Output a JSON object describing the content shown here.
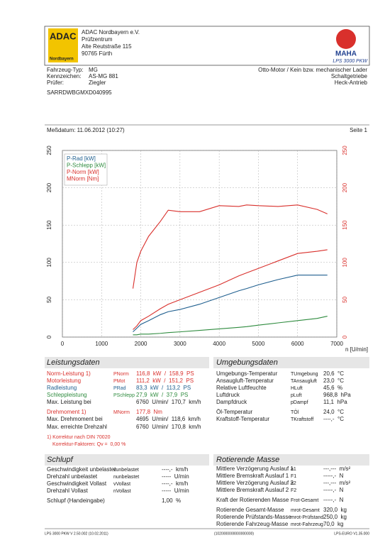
{
  "header": {
    "logo": "ADAC",
    "logo_sub": "Nordbayern",
    "address": [
      "ADAC Nordbayern e.V.",
      "Prüfzentrum",
      "Alte Reutstraße 115",
      "90765 Fürth"
    ],
    "brand": "MAHA",
    "product": "LPS 3000 PKW"
  },
  "vehicle": {
    "rows": [
      [
        "Fahrzeug-Typ:",
        "MG"
      ],
      [
        "Kennzeichen:",
        "AS-MG 881"
      ],
      [
        "Prüfer:",
        "Ziegler"
      ]
    ],
    "info": [
      "Otto-Motor / Kein bzw. mechanischer Lader",
      "Schaltgetriebe",
      "Heck-Antrieb"
    ],
    "vin": "SARRDWBGMXD040995"
  },
  "measurement": {
    "date": "Meßdatum: 11.06.2012 (10:27)",
    "page": "Seite 1"
  },
  "chart_data": {
    "type": "line",
    "x_label": "n [U/min]",
    "x": [
      1800,
      1900,
      2000,
      2200,
      2500,
      2700,
      3000,
      3500,
      4000,
      4500,
      4700,
      5000,
      5500,
      6000,
      6500,
      6760
    ],
    "series": [
      {
        "name": "P-Rad [kW]",
        "color": "#1f5f8f",
        "values": [
          7,
          12,
          17,
          22,
          30,
          34,
          37,
          44,
          53,
          62,
          65,
          70,
          77,
          83,
          83,
          83
        ]
      },
      {
        "name": "P-Schlepp [kW]",
        "color": "#2e8b3e",
        "values": [
          3,
          3,
          4,
          4,
          5,
          6,
          7,
          9,
          11,
          13,
          14,
          16,
          19,
          22,
          25,
          28
        ]
      },
      {
        "name": "P-Norm [kW]",
        "color": "#d9302c",
        "values": [
          10,
          15,
          22,
          28,
          38,
          44,
          50,
          60,
          70,
          82,
          86,
          92,
          102,
          112,
          115,
          117
        ]
      },
      {
        "name": "MNorm [Nm]",
        "color": "#d9302c",
        "values": [
          65,
          100,
          115,
          135,
          155,
          170,
          168,
          168,
          176,
          175,
          177,
          176,
          175,
          177,
          171,
          165
        ]
      }
    ],
    "xlim": [
      0,
      7000
    ],
    "xticks": [
      0,
      1000,
      2000,
      3000,
      4000,
      5000,
      6000,
      7000
    ],
    "ylim": [
      0,
      250
    ],
    "yticks": [
      0,
      50,
      100,
      150,
      200,
      250
    ],
    "grid": true
  },
  "sections": [
    {
      "title": "Leistungsdaten",
      "rows": [
        {
          "label": "Norm-Leistung 1)",
          "symbol": "PNorm",
          "value": "116,8  kW  /  158,9  PS",
          "color": "#d9302c"
        },
        {
          "label": "Motorleistung",
          "symbol": "PMot",
          "value": "111,2  kW  /  151,2  PS",
          "color": "#d9302c"
        },
        {
          "label": "Radleistung",
          "symbol": "PRad",
          "value": "83,3  kW  /  113,2  PS",
          "color": "#1f5f8f"
        },
        {
          "label": "Schleppleistung",
          "symbol": "PSchlepp",
          "value": "27,9  kW  /  37,9  PS",
          "color": "#2e8b3e"
        },
        {
          "label": "Max. Leistung bei",
          "value": "6760  U/min/  170,7  km/h"
        },
        {
          "label": "Drehmoment 1)",
          "symbol": "MNorm",
          "value": "177,8  Nm",
          "color": "#d9302c"
        },
        {
          "label": "Max. Drehmoment bei",
          "value": "4695  U/min/  118,6  km/h"
        },
        {
          "label": "Max. erreichte Drehzahl",
          "value": "6760  U/min/  170,8  km/h"
        }
      ],
      "notes": [
        "1) Korrektur nach DIN 70020",
        "Korrektur-Faktoren: Qv =  0,00 %"
      ]
    },
    {
      "title": "Umgebungsdaten",
      "rows": [
        {
          "label": "Umgebungs-Temperatur",
          "symbol": "TUmgebung",
          "value": "20,6  °C"
        },
        {
          "label": "Ansaugluft-Temperatur",
          "symbol": "TAnsaugluft",
          "value": "23,0  °C"
        },
        {
          "label": "Relative Luftfeuchte",
          "symbol": "HLuft",
          "value": "45,6  %"
        },
        {
          "label": "Luftdruck",
          "symbol": "pLuft",
          "value": "968,8  hPa"
        },
        {
          "label": "Dampfdruck",
          "symbol": "pDampf",
          "value": "11,1  hPa"
        },
        {
          "label": "Öl-Temperatur",
          "symbol": "TÖl",
          "value": "24,0  °C"
        },
        {
          "label": "Kraftstoff-Temperatur",
          "symbol": "TKraftstoff",
          "value": "----,-  °C"
        }
      ]
    },
    {
      "title": "Schlupf",
      "rows": [
        {
          "label": "Geschwindigkeit unbelastet",
          "symbol": "vunbelastet",
          "value": "----,-  km/h"
        },
        {
          "label": "Drehzahl unbelastet",
          "symbol": "nunbelastet",
          "value": "-----  U/min"
        },
        {
          "label": "Geschwindigkeit Vollast",
          "symbol": "vVollast",
          "value": "----,-  km/h"
        },
        {
          "label": "Drehzahl Vollast",
          "symbol": "nVollast",
          "value": "-----  U/min"
        },
        {
          "label": "Schlupf (Handeingabe)",
          "value": "1,00  %"
        }
      ]
    },
    {
      "title": "Rotierende Masse",
      "rows": [
        {
          "label": "Mittlere Verzögerung Auslauf 1",
          "symbol": "a1",
          "value": "---,---  m/s²"
        },
        {
          "label": "Mittlere Bremskraft Auslauf 1",
          "symbol": "F1",
          "value": "-----,-  N"
        },
        {
          "label": "Mittlere Verzögerung Auslauf 2",
          "symbol": "a2",
          "value": "---,---  m/s²"
        },
        {
          "label": "Mittlere Bremskraft Auslauf 2",
          "symbol": "F2",
          "value": "-----,-  N"
        },
        {
          "label": "Kraft der Rotierenden Masse",
          "symbol": "Frot-Gesamt",
          "value": "-----,-  N"
        },
        {
          "label": "Rotierende Gesamt-Masse",
          "symbol": "mrot-Gesamt",
          "value": "320,0  kg"
        },
        {
          "label": "Rotierende Prüfstands-Masse",
          "symbol": "mrot-Prüfstand",
          "value": "250,0  kg"
        },
        {
          "label": "Rotierende Fahrzeug-Masse",
          "symbol": "mrot-Fahrzeug",
          "value": "70,0  kg"
        }
      ]
    }
  ],
  "footer": [
    "LPS 3000 PKW V 2.50.002 (10.02.2011)",
    "(1020000000000000000)",
    "LPS-EURO V1.35.000"
  ]
}
